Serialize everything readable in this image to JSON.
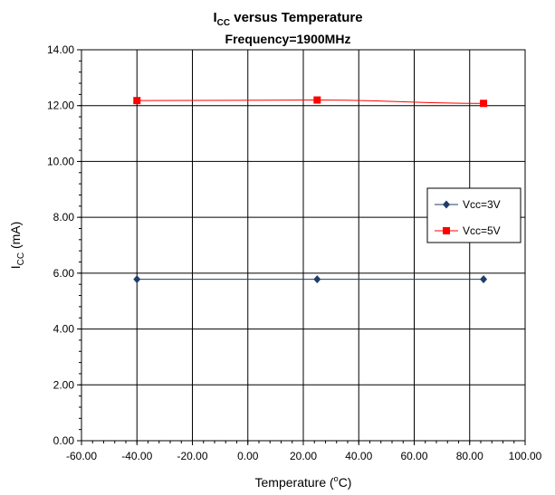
{
  "chart_data": {
    "type": "line",
    "title_main": "I",
    "title_sub": "CC",
    "title_rest": " versus Temperature",
    "subtitle": "Frequency=1900MHz",
    "xlabel_prefix": "Temperature (",
    "xlabel_sup": "o",
    "xlabel_suffix": "C)",
    "ylabel_main": "I",
    "ylabel_sub": "CC",
    "ylabel_rest": " (mA)",
    "xlim": [
      -60,
      100
    ],
    "ylim": [
      0,
      14
    ],
    "xticks": [
      "-60.00",
      "-40.00",
      "-20.00",
      "0.00",
      "20.00",
      "40.00",
      "60.00",
      "80.00",
      "100.00"
    ],
    "yticks": [
      "0.00",
      "2.00",
      "4.00",
      "6.00",
      "8.00",
      "10.00",
      "12.00",
      "14.00"
    ],
    "grid": true,
    "legend_position": "right",
    "series": [
      {
        "name": "Vcc=3V",
        "color": "#1f3d6b",
        "marker": "diamond",
        "x": [
          -40,
          25,
          85
        ],
        "y": [
          5.78,
          5.78,
          5.78
        ]
      },
      {
        "name": "Vcc=5V",
        "color": "#ff0000",
        "marker": "square",
        "x": [
          -40,
          25,
          85
        ],
        "y": [
          12.18,
          12.2,
          12.08
        ]
      }
    ]
  }
}
